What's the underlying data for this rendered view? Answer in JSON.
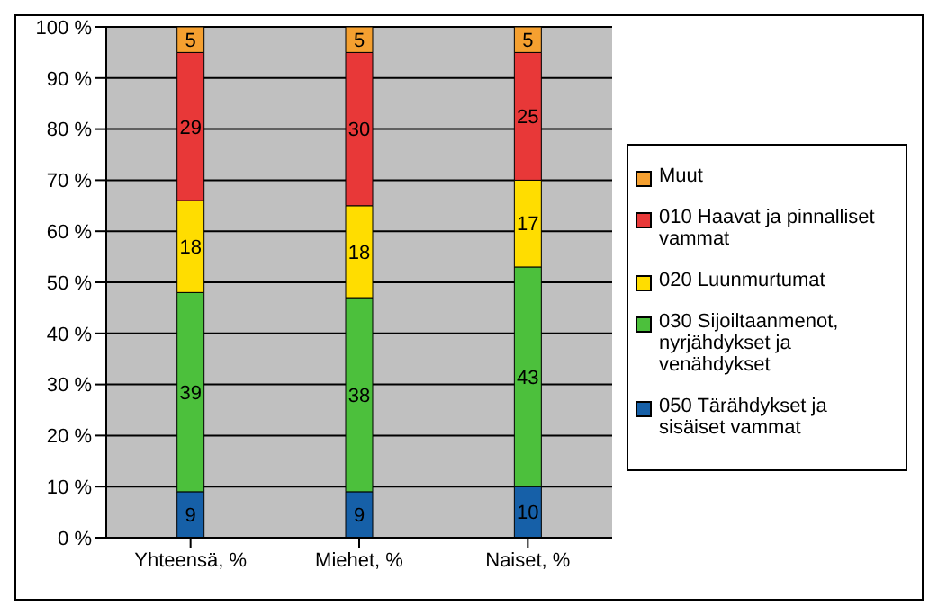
{
  "chart_data": {
    "type": "bar",
    "stacked": true,
    "categories": [
      "Yhteensä, %",
      "Miehet, %",
      "Naiset, %"
    ],
    "series": [
      {
        "name": "050 Tärähdykset ja sisäiset vammat",
        "color": "#1660a8",
        "values": [
          9,
          9,
          10
        ]
      },
      {
        "name": "030 Sijoiltaanmenot, nyrjähdykset ja venähdykset",
        "color": "#4cc03c",
        "values": [
          39,
          38,
          43
        ]
      },
      {
        "name": "020 Luunmurtumat",
        "color": "#ffdd00",
        "values": [
          18,
          18,
          17
        ]
      },
      {
        "name": "010 Haavat ja pinnalliset vammat",
        "color": "#e83838",
        "values": [
          29,
          30,
          25
        ]
      },
      {
        "name": "Muut",
        "color": "#f5a030",
        "values": [
          5,
          5,
          5
        ]
      }
    ],
    "ylim": [
      0,
      100
    ],
    "yticks": [
      {
        "value": 0,
        "label": "0 %"
      },
      {
        "value": 10,
        "label": "10 %"
      },
      {
        "value": 20,
        "label": "20 %"
      },
      {
        "value": 30,
        "label": "30 %"
      },
      {
        "value": 40,
        "label": "40 %"
      },
      {
        "value": 50,
        "label": "50 %"
      },
      {
        "value": 60,
        "label": "60 %"
      },
      {
        "value": 70,
        "label": "70 %"
      },
      {
        "value": 80,
        "label": "80 %"
      },
      {
        "value": 90,
        "label": "90 %"
      },
      {
        "value": 100,
        "label": "100 %"
      }
    ],
    "grid": "y",
    "legend": "right",
    "data_labels": true
  }
}
